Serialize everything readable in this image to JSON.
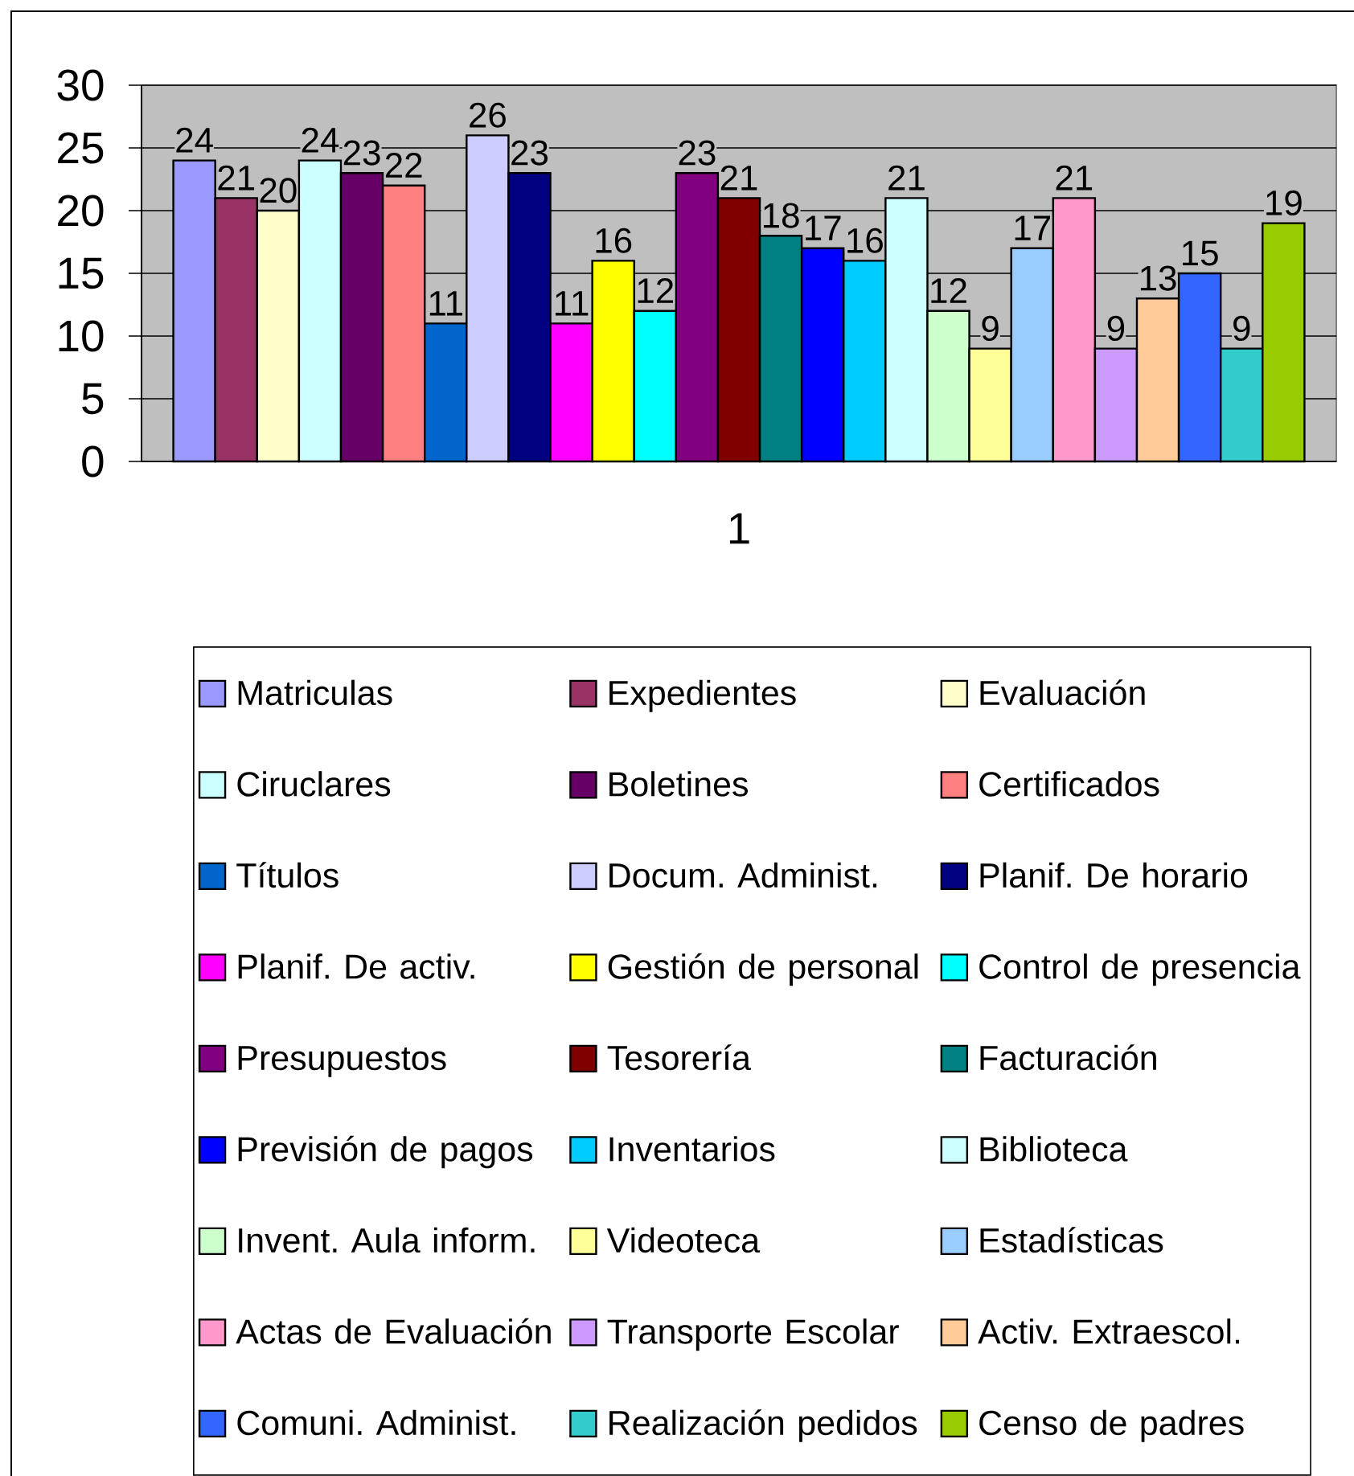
{
  "chart_data": {
    "type": "bar",
    "categories": [
      "1"
    ],
    "series": [
      {
        "name": "Matriculas",
        "color": "#9999ff",
        "values": [
          24
        ]
      },
      {
        "name": "Expedientes",
        "color": "#993366",
        "values": [
          21
        ]
      },
      {
        "name": "Evaluación",
        "color": "#ffffcc",
        "values": [
          20
        ]
      },
      {
        "name": "Ciruclares",
        "color": "#ccffff",
        "values": [
          24
        ]
      },
      {
        "name": "Boletines",
        "color": "#660066",
        "values": [
          23
        ]
      },
      {
        "name": "Certificados",
        "color": "#ff8080",
        "values": [
          22
        ]
      },
      {
        "name": "Títulos",
        "color": "#0066cc",
        "values": [
          11
        ]
      },
      {
        "name": "Docum. Administ.",
        "color": "#ccccff",
        "values": [
          26
        ]
      },
      {
        "name": "Planif. De horario",
        "color": "#000080",
        "values": [
          23
        ]
      },
      {
        "name": "Planif. De  activ.",
        "color": "#ff00ff",
        "values": [
          11
        ]
      },
      {
        "name": "Gestión de personal",
        "color": "#ffff00",
        "values": [
          16
        ]
      },
      {
        "name": "Control de presencia",
        "color": "#00ffff",
        "values": [
          12
        ]
      },
      {
        "name": "Presupuestos",
        "color": "#800080",
        "values": [
          23
        ]
      },
      {
        "name": "Tesorería",
        "color": "#800000",
        "values": [
          21
        ]
      },
      {
        "name": "Facturación",
        "color": "#008080",
        "values": [
          18
        ]
      },
      {
        "name": "Previsión de pagos",
        "color": "#0000ff",
        "values": [
          17
        ]
      },
      {
        "name": "Inventarios",
        "color": "#00ccff",
        "values": [
          16
        ]
      },
      {
        "name": "Biblioteca",
        "color": "#ccffff",
        "values": [
          21
        ]
      },
      {
        "name": "Invent. Aula inform.",
        "color": "#ccffcc",
        "values": [
          12
        ]
      },
      {
        "name": "Videoteca",
        "color": "#ffff99",
        "values": [
          9
        ]
      },
      {
        "name": "Estadísticas",
        "color": "#99ccff",
        "values": [
          17
        ]
      },
      {
        "name": "Actas de Evaluación",
        "color": "#ff99cc",
        "values": [
          21
        ]
      },
      {
        "name": "Transporte Escolar",
        "color": "#cc99ff",
        "values": [
          9
        ]
      },
      {
        "name": "Activ. Extraescol.",
        "color": "#ffcc99",
        "values": [
          13
        ]
      },
      {
        "name": "Comuni. Administ.",
        "color": "#3366ff",
        "values": [
          15
        ]
      },
      {
        "name": "Realización pedidos",
        "color": "#33cccc",
        "values": [
          9
        ]
      },
      {
        "name": "Censo de padres",
        "color": "#99cc00",
        "values": [
          19
        ]
      }
    ],
    "ylim": [
      0,
      30
    ],
    "yticks": [
      0,
      5,
      10,
      15,
      20,
      25,
      30
    ],
    "grid": "y",
    "legend": "bottom",
    "data_labels": true
  }
}
